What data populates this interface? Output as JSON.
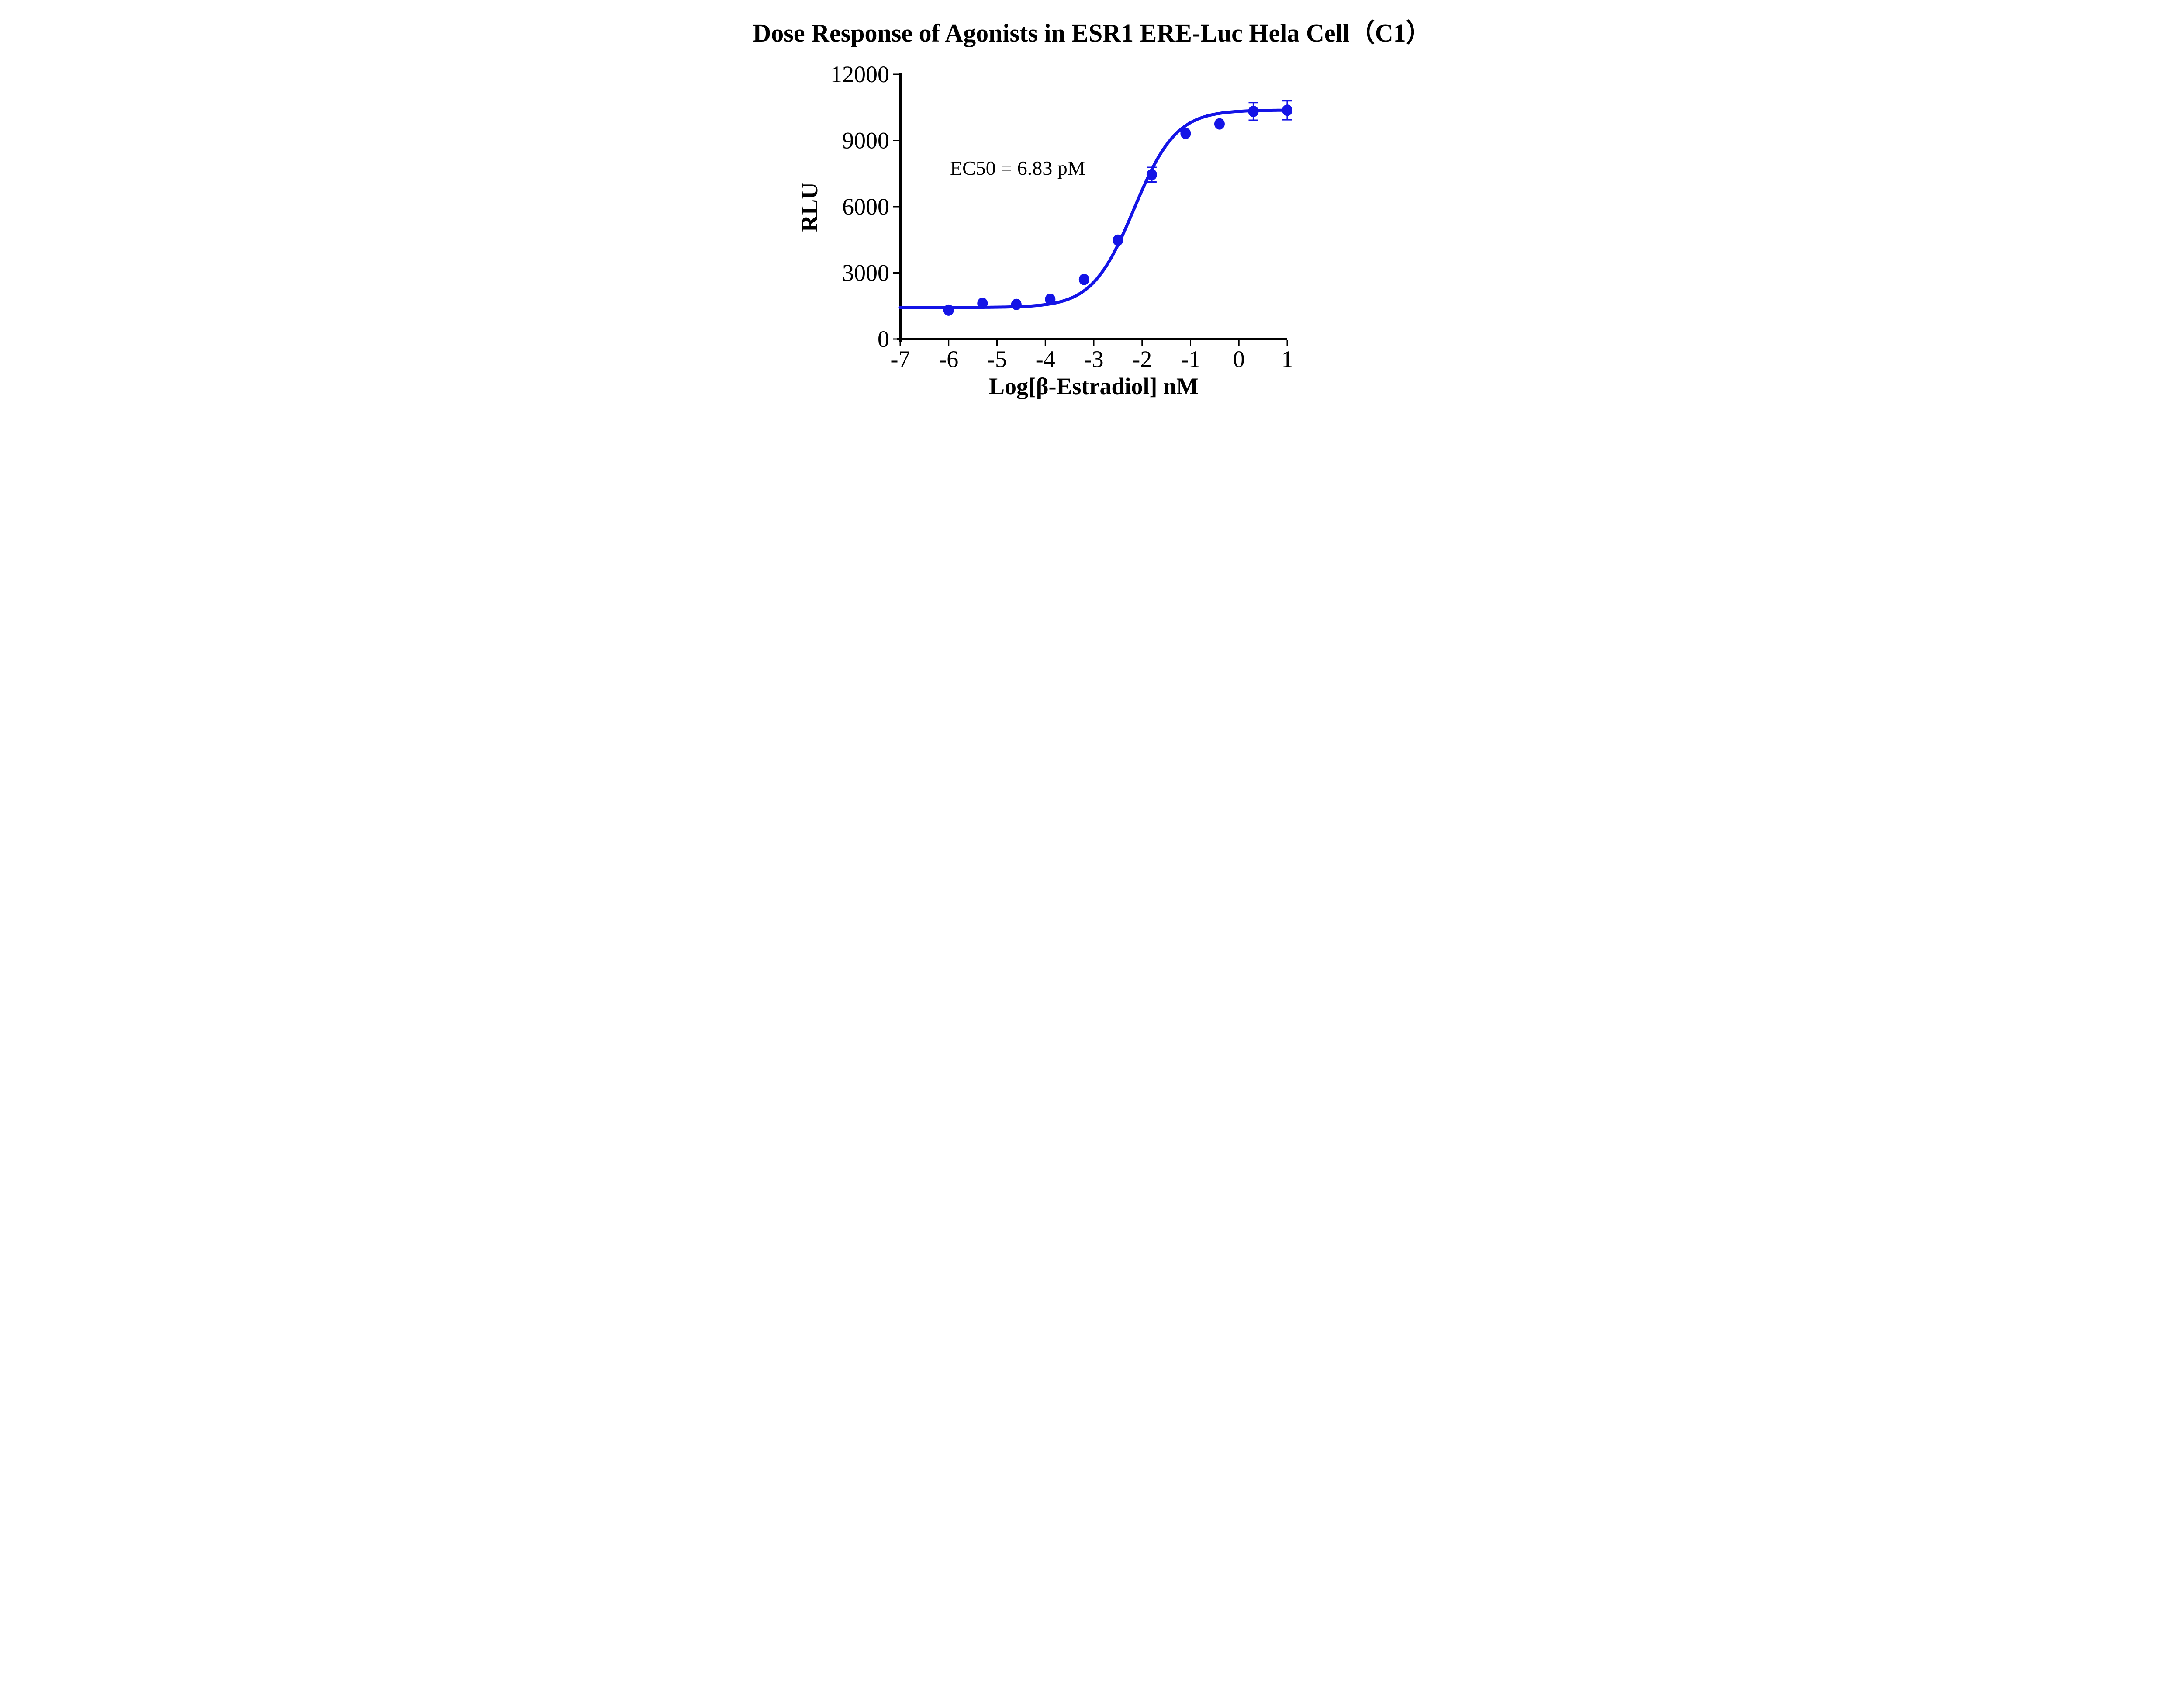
{
  "title": "Dose Response of Agonists in ESR1 ERE-Luc Hela Cell（C1）",
  "colors": {
    "curve": "#1414E6",
    "axis": "#000000",
    "text": "#000000",
    "background": "#FFFFFF"
  },
  "chart_data": {
    "type": "scatter",
    "title": "Dose Response of Agonists in ESR1 ERE-Luc Hela Cell（C1）",
    "xlabel": "Log[β-Estradiol] nM",
    "ylabel": "RLU",
    "annotation": "EC50 = 6.83 pM",
    "xlim": [
      -7,
      1
    ],
    "ylim": [
      0,
      12000
    ],
    "x_ticks": [
      -7,
      -6,
      -5,
      -4,
      -3,
      -2,
      -1,
      0,
      1
    ],
    "y_ticks": [
      0,
      3000,
      6000,
      9000,
      12000
    ],
    "grid": false,
    "legend": "none",
    "series": [
      {
        "name": "β-Estradiol",
        "marker": "circle",
        "color": "#1414E6",
        "x": [
          -6,
          -5.3,
          -4.6,
          -3.9,
          -3.2,
          -2.5,
          -1.8,
          -1.1,
          -0.4,
          0.3,
          1
        ],
        "y": [
          1310,
          1620,
          1570,
          1800,
          2700,
          4480,
          7450,
          9320,
          9750,
          10320,
          10370
        ],
        "y_err": [
          null,
          null,
          null,
          null,
          null,
          null,
          330,
          null,
          null,
          400,
          430
        ]
      }
    ],
    "fit_curve": {
      "model": "4PL",
      "bottom": 1430,
      "top": 10380,
      "log_ec50": -2.166,
      "hill": 1.0,
      "ec50": "6.83 pM",
      "x_range": [
        -7,
        1
      ]
    }
  }
}
